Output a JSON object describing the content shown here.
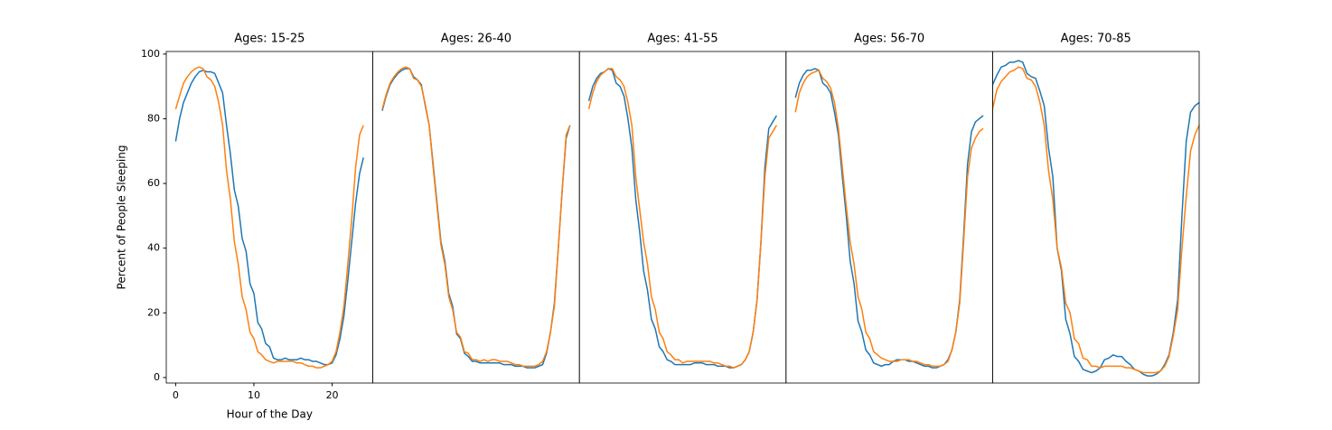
{
  "chart_data": [
    {
      "type": "line",
      "title": "Ages: 15-25",
      "xlabel": "Hour of the Day",
      "ylabel": "Percent of People Sleeping",
      "x": [
        0,
        0.5,
        1,
        1.5,
        2,
        2.5,
        3,
        3.5,
        4,
        4.5,
        5,
        5.5,
        6,
        6.5,
        7,
        7.5,
        8,
        8.5,
        9,
        9.5,
        10,
        10.5,
        11,
        11.5,
        12,
        12.5,
        13,
        13.5,
        14,
        14.5,
        15,
        15.5,
        16,
        16.5,
        17,
        17.5,
        18,
        18.5,
        19,
        19.5,
        20,
        20.5,
        21,
        21.5,
        22,
        22.5,
        23,
        23.5,
        24
      ],
      "xlim": [
        -1.2,
        25.2
      ],
      "ylim": [
        -1.7,
        100.8
      ],
      "xticks": [
        0,
        10,
        20
      ],
      "yticks": [
        0,
        20,
        40,
        60,
        80,
        100
      ],
      "series": [
        {
          "color": "#1f77b4",
          "values": [
            73,
            80,
            85,
            88,
            91,
            93,
            94.5,
            95,
            94.5,
            94.5,
            94,
            91,
            88,
            78,
            69,
            58,
            53,
            43,
            39,
            29,
            26,
            17,
            15,
            10.5,
            9.5,
            6,
            5.5,
            5.5,
            6,
            5.5,
            5.5,
            5.5,
            6,
            5.5,
            5.5,
            5,
            5,
            4.5,
            4,
            4,
            4.5,
            7,
            12,
            19,
            30,
            42,
            54,
            63,
            68
          ]
        },
        {
          "color": "#ff7f0e",
          "values": [
            83,
            87,
            91,
            93,
            94.5,
            95.5,
            96,
            95.5,
            93,
            92,
            90,
            85,
            78,
            64,
            55,
            42,
            35,
            25,
            21,
            14,
            12,
            8,
            7,
            5.5,
            5,
            4.5,
            5,
            5,
            5,
            5,
            5,
            4.5,
            4.5,
            4,
            3.5,
            3.5,
            3,
            3,
            3.5,
            4,
            5,
            8,
            14,
            22,
            35,
            49,
            65,
            75,
            78
          ]
        }
      ]
    },
    {
      "type": "line",
      "title": "Ages: 26-40",
      "x": [
        0,
        0.5,
        1,
        1.5,
        2,
        2.5,
        3,
        3.5,
        4,
        4.5,
        5,
        5.5,
        6,
        6.5,
        7,
        7.5,
        8,
        8.5,
        9,
        9.5,
        10,
        10.5,
        11,
        11.5,
        12,
        12.5,
        13,
        13.5,
        14,
        14.5,
        15,
        15.5,
        16,
        16.5,
        17,
        17.5,
        18,
        18.5,
        19,
        19.5,
        20,
        20.5,
        21,
        21.5,
        22,
        22.5,
        23,
        23.5,
        24
      ],
      "xlim": [
        -1.2,
        25.2
      ],
      "ylim": [
        -1.7,
        100.8
      ],
      "series": [
        {
          "color": "#1f77b4",
          "values": [
            82.5,
            87,
            90.5,
            92.5,
            94,
            95,
            95.5,
            95.5,
            93,
            92,
            90.5,
            84,
            78,
            66,
            54,
            42,
            36,
            26,
            22,
            13.5,
            12,
            7.5,
            6.5,
            5,
            5,
            4.5,
            4.5,
            4.5,
            4.5,
            4.5,
            4.5,
            4,
            4,
            4,
            3.5,
            3.5,
            3.5,
            3,
            3,
            3,
            3.5,
            4,
            7.5,
            14,
            23,
            40,
            58,
            74,
            78
          ]
        },
        {
          "color": "#ff7f0e",
          "values": [
            83,
            87.5,
            91,
            93,
            94.5,
            95.5,
            96,
            95.5,
            92.5,
            92,
            90,
            84.5,
            78,
            65,
            53,
            41,
            35,
            25,
            21,
            14,
            12.5,
            8,
            7.5,
            5.5,
            5.5,
            5,
            5.5,
            5,
            5.5,
            5.5,
            5,
            5,
            5,
            4.5,
            4,
            4,
            3.5,
            3.5,
            3.5,
            3.5,
            4,
            5,
            8,
            14,
            22,
            40,
            58,
            75,
            78
          ]
        }
      ]
    },
    {
      "type": "line",
      "title": "Ages: 41-55",
      "x": [
        0,
        0.5,
        1,
        1.5,
        2,
        2.5,
        3,
        3.5,
        4,
        4.5,
        5,
        5.5,
        6,
        6.5,
        7,
        7.5,
        8,
        8.5,
        9,
        9.5,
        10,
        10.5,
        11,
        11.5,
        12,
        12.5,
        13,
        13.5,
        14,
        14.5,
        15,
        15.5,
        16,
        16.5,
        17,
        17.5,
        18,
        18.5,
        19,
        19.5,
        20,
        20.5,
        21,
        21.5,
        22,
        22.5,
        23,
        23.5,
        24
      ],
      "xlim": [
        -1.2,
        25.2
      ],
      "ylim": [
        -1.7,
        100.8
      ],
      "series": [
        {
          "color": "#1f77b4",
          "values": [
            85.5,
            90,
            92.5,
            94,
            94.5,
            95.5,
            95,
            91,
            90,
            87,
            80,
            71,
            55,
            45,
            33,
            27,
            18,
            15,
            9.5,
            8,
            5.5,
            5,
            4,
            4,
            4,
            4,
            4,
            4.5,
            4.5,
            4.5,
            4,
            4,
            4,
            3.5,
            3.5,
            3.5,
            3,
            3,
            3.5,
            4,
            5.5,
            8,
            14,
            24,
            42,
            65,
            77,
            79,
            81
          ]
        },
        {
          "color": "#ff7f0e",
          "values": [
            83,
            88,
            91.5,
            93.5,
            94.5,
            95.5,
            95.5,
            93,
            92,
            90,
            85,
            78,
            62,
            52,
            42,
            35,
            25,
            21,
            14,
            12,
            8,
            7,
            5.5,
            5.5,
            4.5,
            5,
            5,
            5,
            5,
            5,
            5,
            5,
            4.5,
            4.5,
            4,
            3.5,
            3.5,
            3,
            3.5,
            4,
            5.5,
            8,
            14,
            24,
            42,
            62,
            74,
            76,
            78
          ]
        }
      ]
    },
    {
      "type": "line",
      "title": "Ages: 56-70",
      "x": [
        0,
        0.5,
        1,
        1.5,
        2,
        2.5,
        3,
        3.5,
        4,
        4.5,
        5,
        5.5,
        6,
        6.5,
        7,
        7.5,
        8,
        8.5,
        9,
        9.5,
        10,
        10.5,
        11,
        11.5,
        12,
        12.5,
        13,
        13.5,
        14,
        14.5,
        15,
        15.5,
        16,
        16.5,
        17,
        17.5,
        18,
        18.5,
        19,
        19.5,
        20,
        20.5,
        21,
        21.5,
        22,
        22.5,
        23,
        23.5,
        24
      ],
      "xlim": [
        -1.2,
        25.2
      ],
      "ylim": [
        -1.7,
        100.8
      ],
      "series": [
        {
          "color": "#1f77b4",
          "values": [
            86.5,
            91,
            93.5,
            95,
            95,
            95.5,
            95,
            91,
            90,
            88,
            82,
            75,
            62,
            50,
            36,
            29,
            17.5,
            14,
            8.5,
            7,
            4.5,
            4,
            3.5,
            4,
            4,
            5,
            5.5,
            5.5,
            5.5,
            5,
            5,
            4.5,
            4,
            3.5,
            3.5,
            3,
            3,
            3.5,
            4,
            5.5,
            8.5,
            14,
            24,
            44,
            66,
            76,
            79,
            80,
            81
          ]
        },
        {
          "color": "#ff7f0e",
          "values": [
            82,
            88,
            91,
            93,
            94,
            94.5,
            95,
            92.5,
            91.5,
            89.5,
            85,
            77,
            65,
            53,
            42,
            35,
            25,
            21,
            14,
            12,
            8,
            7,
            6,
            5.5,
            5,
            5,
            5,
            5.5,
            5.5,
            5.5,
            5,
            5,
            4.5,
            4,
            4,
            3.5,
            3.5,
            3.5,
            4,
            5,
            8.5,
            14,
            23,
            42,
            62,
            71,
            74,
            76,
            77
          ]
        }
      ]
    },
    {
      "type": "line",
      "title": "Ages: 70-85",
      "x": [
        0,
        0.5,
        1,
        1.5,
        2,
        2.5,
        3,
        3.5,
        4,
        4.5,
        5,
        5.5,
        6,
        6.5,
        7,
        7.5,
        8,
        8.5,
        9,
        9.5,
        10,
        10.5,
        11,
        11.5,
        12,
        12.5,
        13,
        13.5,
        14,
        14.5,
        15,
        15.5,
        16,
        16.5,
        17,
        17.5,
        18,
        18.5,
        19,
        19.5,
        20,
        20.5,
        21,
        21.5,
        22,
        22.5,
        23,
        23.5,
        24
      ],
      "xlim": [
        0,
        24
      ],
      "ylim": [
        -1.7,
        100.8
      ],
      "series": [
        {
          "color": "#1f77b4",
          "values": [
            90.5,
            93.5,
            96,
            96.5,
            97.5,
            97.5,
            98,
            97.5,
            94,
            93,
            92.5,
            88.5,
            84,
            71,
            62,
            40,
            33,
            18,
            13.5,
            6.5,
            5,
            2.5,
            2,
            1.5,
            2,
            3,
            5.5,
            6,
            7,
            6.5,
            6.5,
            5,
            4,
            2.5,
            2,
            1,
            0.5,
            0.5,
            1,
            2,
            4,
            7,
            14,
            24,
            50,
            73,
            82,
            84,
            85
          ]
        },
        {
          "color": "#ff7f0e",
          "values": [
            83,
            89,
            91.5,
            93,
            94.5,
            95,
            96,
            95.5,
            92.5,
            92,
            90,
            85,
            78,
            64,
            55,
            40,
            34,
            23,
            20,
            12,
            10.5,
            6,
            5.5,
            3.5,
            3.5,
            3,
            3.5,
            3.5,
            3.5,
            3.5,
            3.5,
            3,
            3,
            2.5,
            2,
            1.5,
            1.5,
            1.5,
            1.5,
            2,
            3.5,
            6.5,
            13,
            21,
            40,
            56,
            70,
            75,
            78
          ]
        }
      ]
    }
  ]
}
